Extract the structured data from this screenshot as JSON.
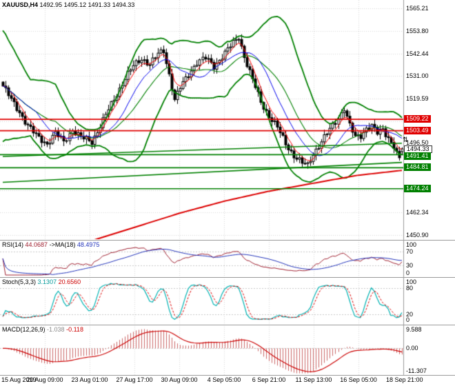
{
  "colors": {
    "background": "#ffffff",
    "grid": "#d9d9d9",
    "candle_up": "#ffffff",
    "candle_down": "#000000",
    "candle_outline": "#000000",
    "bollinger": "#008000",
    "ma_fast": "#ff0000",
    "ma_mid": "#0000ee",
    "ma_slow": "#dd0000",
    "resistance": "#e00000",
    "support": "#008000",
    "rsi_line": "#a02030",
    "rsi_ma": "#2233bb",
    "stoch_k": "#00b3b3",
    "stoch_d": "#dd0000",
    "macd_hist": "#cc6666",
    "macd_signal": "#cc0000",
    "panel_level": "#c8c8c8",
    "separator": "#9a9a9a",
    "axis_text": "#000000"
  },
  "header": {
    "symbol": "XAUUSD,H4",
    "open": "1492.95",
    "high": "1495.12",
    "low": "1491.33",
    "close": "1494.33"
  },
  "main": {
    "y_labels": [
      {
        "text": "1565.21",
        "value": 1565.21
      },
      {
        "text": "1553.80",
        "value": 1553.8
      },
      {
        "text": "1542.44",
        "value": 1542.44
      },
      {
        "text": "1531.00",
        "value": 1531.0
      },
      {
        "text": "1519.59",
        "value": 1519.59
      },
      {
        "text": "1496.50",
        "value": 1496.5,
        "dy": -3
      },
      {
        "text": "1462.34",
        "value": 1462.34
      },
      {
        "text": "1450.90",
        "value": 1450.9
      }
    ],
    "badges": [
      {
        "text": "1509.22",
        "value": 1509.22,
        "style": "red"
      },
      {
        "text": "1503.49",
        "value": 1503.49,
        "style": "red"
      },
      {
        "text": "1494.33",
        "value": 1494.33,
        "style": "current",
        "dy": 1
      },
      {
        "text": "1491.41",
        "value": 1491.41,
        "style": "green",
        "dy": 3
      },
      {
        "text": "1484.81",
        "value": 1484.81,
        "style": "green"
      },
      {
        "text": "1474.24",
        "value": 1474.24,
        "style": "green"
      }
    ],
    "grid_prices": [
      1565.21,
      1553.8,
      1542.44,
      1531.0,
      1519.59,
      1508.18,
      1496.5,
      1485.05,
      1473.64,
      1462.34,
      1450.9
    ]
  },
  "indicators": {
    "rsi": {
      "label": "RSI(14)",
      "value": "44.0687",
      "ma_label": "->MA(18)",
      "ma_value": "48.4975",
      "axis": [
        "100",
        "70",
        "30",
        "0"
      ],
      "guides": [
        70,
        30
      ]
    },
    "stoch": {
      "label": "Stoch(5,3,3)",
      "k_value": "3.1307",
      "d_value": "20.6560",
      "axis": [
        "100",
        "80",
        "20",
        "0"
      ],
      "guides": [
        80,
        20
      ]
    },
    "macd": {
      "label": "MACD(12,26,9)",
      "value": "-1.038",
      "signal_value": "-0.118",
      "axis": [
        "9.588",
        "0.00",
        "-11.307"
      ]
    }
  },
  "time_axis": [
    "15 Aug 2019",
    "20 Aug 09:00",
    "23 Aug 01:00",
    "27 Aug 17:00",
    "30 Aug 09:00",
    "4 Sep 05:00",
    "6 Sep 21:00",
    "11 Sep 13:00",
    "16 Sep 05:00",
    "18 Sep 21:00"
  ],
  "misc": {
    "price_arrows_glyph": "⇅"
  },
  "chart_data": {
    "type": "candlestick",
    "title": "XAUUSD,H4",
    "symbol": "XAUUSD",
    "timeframe": "H4",
    "last_ohlc": {
      "open": 1492.95,
      "high": 1495.12,
      "low": 1491.33,
      "close": 1494.33
    },
    "candle_count": 145,
    "x_labels": [
      "15 Aug 2019",
      "20 Aug 09:00",
      "23 Aug 01:00",
      "27 Aug 17:00",
      "30 Aug 09:00",
      "4 Sep 05:00",
      "6 Sep 21:00",
      "11 Sep 13:00",
      "16 Sep 05:00",
      "18 Sep 21:00"
    ],
    "y_range": [
      1448.8,
      1569.4
    ],
    "close_anchors": [
      [
        0,
        1526
      ],
      [
        3,
        1519
      ],
      [
        6,
        1513
      ],
      [
        9,
        1506
      ],
      [
        12,
        1501
      ],
      [
        16,
        1497
      ],
      [
        19,
        1502
      ],
      [
        22,
        1498
      ],
      [
        25,
        1504
      ],
      [
        28,
        1500
      ],
      [
        32,
        1498
      ],
      [
        35,
        1506
      ],
      [
        38,
        1514
      ],
      [
        41,
        1522
      ],
      [
        44,
        1530
      ],
      [
        47,
        1536
      ],
      [
        50,
        1540
      ],
      [
        53,
        1537
      ],
      [
        56,
        1542
      ],
      [
        58,
        1544
      ],
      [
        60,
        1532
      ],
      [
        62,
        1519
      ],
      [
        64,
        1525
      ],
      [
        67,
        1532
      ],
      [
        70,
        1538
      ],
      [
        73,
        1540
      ],
      [
        76,
        1536
      ],
      [
        79,
        1541
      ],
      [
        82,
        1546
      ],
      [
        85,
        1551
      ],
      [
        87,
        1541
      ],
      [
        90,
        1529
      ],
      [
        93,
        1518
      ],
      [
        96,
        1511
      ],
      [
        99,
        1505
      ],
      [
        102,
        1497
      ],
      [
        105,
        1491
      ],
      [
        108,
        1487
      ],
      [
        110,
        1486
      ],
      [
        112,
        1492
      ],
      [
        115,
        1498
      ],
      [
        118,
        1504
      ],
      [
        121,
        1510
      ],
      [
        123,
        1515
      ],
      [
        125,
        1506
      ],
      [
        127,
        1500
      ],
      [
        129,
        1501
      ],
      [
        131,
        1505
      ],
      [
        133,
        1506
      ],
      [
        135,
        1502
      ],
      [
        137,
        1504
      ],
      [
        139,
        1500
      ],
      [
        141,
        1496
      ],
      [
        142,
        1492
      ],
      [
        143,
        1489
      ],
      [
        144,
        1494.33
      ]
    ],
    "slow_ma_anchors": [
      [
        0,
        1441
      ],
      [
        16,
        1444
      ],
      [
        32,
        1448
      ],
      [
        48,
        1455
      ],
      [
        64,
        1462
      ],
      [
        80,
        1468
      ],
      [
        96,
        1473
      ],
      [
        112,
        1477
      ],
      [
        128,
        1481
      ],
      [
        144,
        1483.5
      ]
    ],
    "levels": {
      "resistance": [
        1509.22,
        1503.49
      ],
      "support": [
        1491.41,
        1484.81,
        1474.24
      ],
      "trendlines": [
        [
          1490.5,
          1497.2
        ],
        [
          1477.5,
          1487.5
        ]
      ]
    },
    "indicator_settings": {
      "bollinger_period": 20,
      "bollinger_dev": 2,
      "ma_fast": 5,
      "ma_mid": 13,
      "rsi_period": 14,
      "rsi_ma_period": 18,
      "stoch": [
        5,
        3,
        3
      ],
      "macd": [
        12,
        26,
        9
      ]
    },
    "indicator_last": {
      "rsi": 44.0687,
      "rsi_ma": 48.4975,
      "stoch_k": 3.1307,
      "stoch_d": 20.656,
      "macd": -1.038,
      "macd_signal": -0.118
    }
  }
}
